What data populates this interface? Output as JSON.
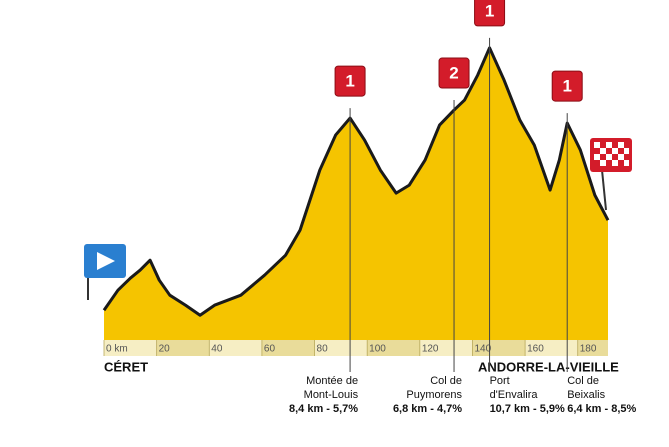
{
  "chart_data": {
    "type": "area",
    "x": [
      0,
      5.3,
      10,
      13.7,
      17.5,
      21,
      25,
      31,
      36.5,
      42,
      52,
      61,
      69,
      74.5,
      82,
      88,
      93.5,
      99,
      105,
      111,
      116,
      122,
      127.5,
      133,
      137,
      142,
      146.5,
      152,
      158,
      163.5,
      169.5,
      173,
      176,
      181,
      186.5,
      191.5
    ],
    "values": [
      146,
      318,
      421,
      490,
      576,
      404,
      275,
      189,
      103,
      189,
      275,
      447,
      619,
      834,
      1350,
      1651,
      1797,
      1608,
      1350,
      1152,
      1221,
      1436,
      1737,
      1866,
      1952,
      2167,
      2400,
      2124,
      1780,
      1565,
      1178,
      1436,
      1754,
      1522,
      1135,
      920
    ],
    "color": "#f5c400",
    "xlim": [
      0,
      191.5
    ],
    "ylim": [
      -110,
      2700
    ],
    "xticks": [
      {
        "value": 0,
        "label": "0 km"
      },
      20,
      40,
      60,
      80,
      100,
      120,
      140,
      160,
      180
    ],
    "start": "CÉRET",
    "finish": "ANDORRE-LA-VIEILLE",
    "climbs": [
      {
        "km": 93.5,
        "category": "1",
        "name": [
          "Montée de",
          "Mont-Louis"
        ],
        "stats": "8,4 km - 5,7%"
      },
      {
        "km": 133,
        "category": "2",
        "name": [
          "Col de",
          "Puymorens"
        ],
        "stats": "6,8 km - 4,7%"
      },
      {
        "km": 146.5,
        "category": "1",
        "name": [
          "Port",
          "d'Envalira"
        ],
        "stats": "10,7 km - 5,9%"
      },
      {
        "km": 176,
        "category": "1",
        "name": [
          "Col de",
          "Beixalis"
        ],
        "stats": "6,4 km - 8,5%"
      }
    ]
  }
}
